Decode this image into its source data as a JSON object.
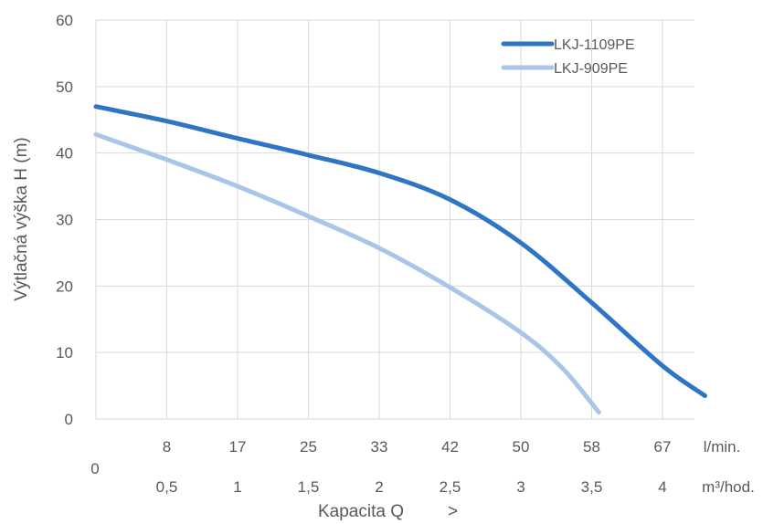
{
  "chart_data": {
    "type": "line",
    "title": "",
    "ylabel": "Výtlačná výška H (m)",
    "xlabel": "Kapacita Q",
    "xlabel_arrow": ">",
    "ylim": [
      0,
      60
    ],
    "yticks": [
      0,
      10,
      20,
      30,
      40,
      50,
      60
    ],
    "xlim": [
      0,
      4.33
    ],
    "grid": true,
    "legend_position": "top-right",
    "origin_label": "0",
    "x_axis_rows": [
      {
        "unit": "l/min.",
        "ticks": [
          "8",
          "17",
          "25",
          "33",
          "42",
          "50",
          "58",
          "67"
        ]
      },
      {
        "unit": "m³/hod.",
        "ticks": [
          "0,5",
          "1",
          "1,5",
          "2",
          "2,5",
          "3",
          "3,5",
          "4"
        ]
      }
    ],
    "series": [
      {
        "name": "LKJ-1109PE",
        "color": "#2E75C6",
        "x": [
          0,
          0.5,
          1,
          1.5,
          2,
          2.5,
          3,
          3.5,
          4,
          4.3
        ],
        "y": [
          47,
          44.8,
          42.2,
          39.7,
          37,
          33,
          26.5,
          17.5,
          8,
          3.5
        ]
      },
      {
        "name": "LKJ-909PE",
        "color": "#A9C6E8",
        "x": [
          0,
          0.5,
          1,
          1.5,
          2,
          2.5,
          3,
          3.3,
          3.55
        ],
        "y": [
          42.8,
          39,
          35,
          30.5,
          25.7,
          19.8,
          13,
          7.5,
          1
        ]
      }
    ]
  }
}
